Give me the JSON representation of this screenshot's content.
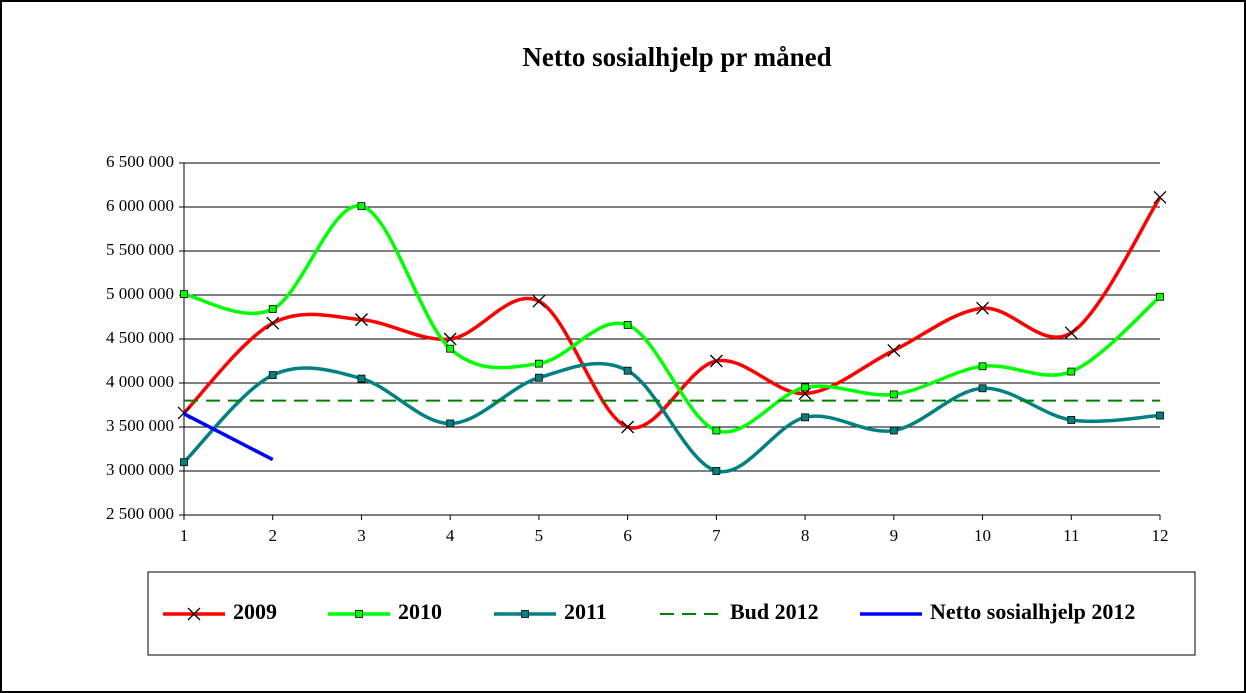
{
  "chart_data": {
    "type": "line",
    "title": "Netto sosialhjelp pr måned",
    "x": [
      1,
      2,
      3,
      4,
      5,
      6,
      7,
      8,
      9,
      10,
      11,
      12
    ],
    "xlim": [
      1,
      12
    ],
    "xticks": [
      1,
      2,
      3,
      4,
      5,
      6,
      7,
      8,
      9,
      10,
      11,
      12
    ],
    "ylim": [
      2500000,
      6500000
    ],
    "yticks": [
      {
        "value": 2500000,
        "label": "2 500 000"
      },
      {
        "value": 3000000,
        "label": "3 000 000"
      },
      {
        "value": 3500000,
        "label": "3 500 000"
      },
      {
        "value": 4000000,
        "label": "4 000 000"
      },
      {
        "value": 4500000,
        "label": "4 500 000"
      },
      {
        "value": 5000000,
        "label": "5 000 000"
      },
      {
        "value": 5500000,
        "label": "5 500 000"
      },
      {
        "value": 6000000,
        "label": "6 000 000"
      },
      {
        "value": 6500000,
        "label": "6 500 000"
      }
    ],
    "grid": true,
    "legend": "bottom",
    "series": [
      {
        "name": "2009",
        "color": "#ff0000",
        "marker": "x",
        "values": [
          3660000,
          4680000,
          4720000,
          4500000,
          4930000,
          3500000,
          4250000,
          3880000,
          4370000,
          4850000,
          4570000,
          6110000
        ]
      },
      {
        "name": "2010",
        "color": "#00ff00",
        "marker": "square",
        "values": [
          5010000,
          4840000,
          6010000,
          4390000,
          4220000,
          4660000,
          3460000,
          3950000,
          3870000,
          4190000,
          4130000,
          4980000
        ]
      },
      {
        "name": "2011",
        "color": "#008080",
        "marker": "square",
        "values": [
          3100000,
          4090000,
          4050000,
          3540000,
          4060000,
          4140000,
          3000000,
          3610000,
          3460000,
          3940000,
          3580000,
          3630000
        ]
      },
      {
        "name": "Bud 2012",
        "color": "#008000",
        "dashed": true,
        "values": [
          3800000,
          3800000,
          3800000,
          3800000,
          3800000,
          3800000,
          3800000,
          3800000,
          3800000,
          3800000,
          3800000,
          3800000
        ]
      },
      {
        "name": "Netto sosialhjelp 2012",
        "color": "#0000ff",
        "values": [
          3650000,
          3130000,
          null,
          null,
          null,
          null,
          null,
          null,
          null,
          null,
          null,
          null
        ]
      }
    ]
  }
}
